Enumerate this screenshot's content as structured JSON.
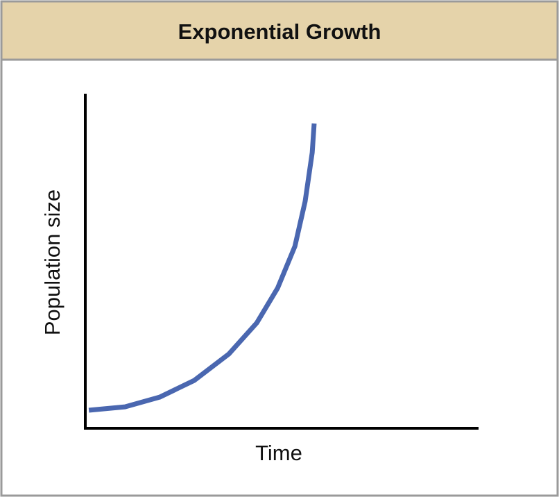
{
  "chart_data": {
    "type": "line",
    "title": "Exponential Growth",
    "x_label": "Time",
    "y_label": "Population size",
    "xlim": [
      0,
      100
    ],
    "ylim": [
      0,
      100
    ],
    "series": [
      {
        "color": "#4a67b0",
        "x": [
          0.9,
          10.1,
          18.9,
          27.7,
          36.5,
          43.6,
          48.9,
          53.3,
          55.9,
          57.7,
          58.2
        ],
        "values": [
          5.4,
          6.4,
          9.3,
          14.3,
          22.2,
          31.5,
          41.9,
          54.4,
          67.8,
          82.4,
          91.1
        ]
      }
    ]
  }
}
